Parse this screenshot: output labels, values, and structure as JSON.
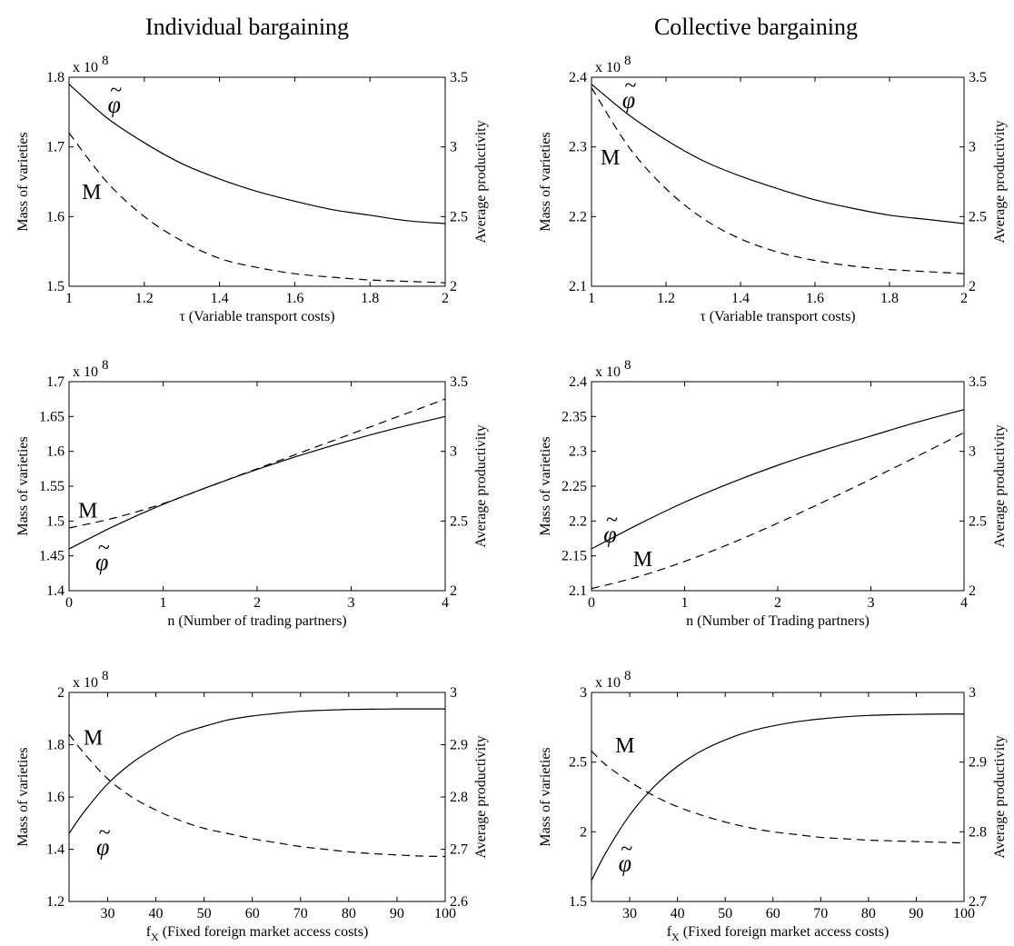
{
  "column_titles": [
    "Individual bargaining",
    "Collective bargaining"
  ],
  "y_multiplier_text": "x 10",
  "y_multiplier_exponent": "8",
  "curve_labels": {
    "M": "M",
    "phi": "φ",
    "tilde": "~"
  },
  "colors": {
    "axis": "#000000",
    "solid": "#000000",
    "dashed": "#000000"
  },
  "chart_data": [
    {
      "type": "line",
      "position": "top-left",
      "xlabel": "τ (Variable transport costs)",
      "ylabel_left": "Mass of varieties",
      "ylabel_right": "Average productivity",
      "xlim": [
        1,
        2
      ],
      "ylim_left": [
        1.5,
        1.8
      ],
      "ylim_right": [
        2,
        3.5
      ],
      "xticks": [
        1,
        1.2,
        1.4,
        1.6,
        1.8,
        2
      ],
      "xtick_labels": [
        "1",
        "1.2",
        "1.4",
        "1.6",
        "1.8",
        "2"
      ],
      "yticks_left": [
        1.5,
        1.6,
        1.7,
        1.8
      ],
      "ytick_labels_left": [
        "1.5",
        "1.6",
        "1.7",
        "1.8"
      ],
      "yticks_right": [
        2,
        2.5,
        3,
        3.5
      ],
      "ytick_labels_right": [
        "2",
        "2.5",
        "3",
        "3.5"
      ],
      "series": [
        {
          "name": "φ",
          "axis": "right",
          "style": "solid",
          "x": [
            1,
            1.1,
            1.2,
            1.3,
            1.4,
            1.5,
            1.6,
            1.7,
            1.8,
            1.9,
            2
          ],
          "y": [
            3.45,
            3.21,
            3.03,
            2.88,
            2.77,
            2.68,
            2.61,
            2.55,
            2.51,
            2.47,
            2.45
          ]
        },
        {
          "name": "M",
          "axis": "left",
          "style": "dashed",
          "x": [
            1,
            1.1,
            1.2,
            1.3,
            1.4,
            1.5,
            1.6,
            1.7,
            1.8,
            1.9,
            2
          ],
          "y": [
            1.72,
            1.65,
            1.6,
            1.565,
            1.54,
            1.527,
            1.518,
            1.513,
            1.509,
            1.507,
            1.505
          ]
        }
      ],
      "labels": [
        {
          "key": "phi",
          "x": 1.12,
          "axis": "right",
          "y": 3.25
        },
        {
          "key": "M",
          "x": 1.06,
          "axis": "left",
          "y": 1.625
        }
      ]
    },
    {
      "type": "line",
      "position": "top-right",
      "xlabel": "τ (Variable transport costs)",
      "ylabel_left": "Mass of varieties",
      "ylabel_right": "Average productivity",
      "xlim": [
        1,
        2
      ],
      "ylim_left": [
        2.1,
        2.4
      ],
      "ylim_right": [
        2,
        3.5
      ],
      "xticks": [
        1,
        1.2,
        1.4,
        1.6,
        1.8,
        2
      ],
      "xtick_labels": [
        "1",
        "1.2",
        "1.4",
        "1.6",
        "1.8",
        "2"
      ],
      "yticks_left": [
        2.1,
        2.2,
        2.3,
        2.4
      ],
      "ytick_labels_left": [
        "2.1",
        "2.2",
        "2.3",
        "2.4"
      ],
      "yticks_right": [
        2,
        2.5,
        3,
        3.5
      ],
      "ytick_labels_right": [
        "2",
        "2.5",
        "3",
        "3.5"
      ],
      "series": [
        {
          "name": "φ",
          "axis": "right",
          "style": "solid",
          "x": [
            1,
            1.1,
            1.2,
            1.3,
            1.4,
            1.5,
            1.6,
            1.7,
            1.8,
            1.9,
            2
          ],
          "y": [
            3.45,
            3.23,
            3.05,
            2.9,
            2.79,
            2.7,
            2.62,
            2.56,
            2.51,
            2.48,
            2.45
          ]
        },
        {
          "name": "M",
          "axis": "left",
          "style": "dashed",
          "x": [
            1,
            1.1,
            1.2,
            1.3,
            1.4,
            1.5,
            1.6,
            1.7,
            1.8,
            1.9,
            2
          ],
          "y": [
            2.385,
            2.3,
            2.24,
            2.197,
            2.168,
            2.149,
            2.137,
            2.129,
            2.124,
            2.121,
            2.118
          ]
        }
      ],
      "labels": [
        {
          "key": "phi",
          "x": 1.1,
          "axis": "right",
          "y": 3.28
        },
        {
          "key": "M",
          "x": 1.05,
          "axis": "left",
          "y": 2.275
        }
      ]
    },
    {
      "type": "line",
      "position": "middle-left",
      "xlabel": "n (Number of trading partners)",
      "ylabel_left": "Mass of varieties",
      "ylabel_right": "Average productivity",
      "xlim": [
        0,
        4
      ],
      "ylim_left": [
        1.4,
        1.7
      ],
      "ylim_right": [
        2,
        3.5
      ],
      "xticks": [
        0,
        1,
        2,
        3,
        4
      ],
      "xtick_labels": [
        "0",
        "1",
        "2",
        "3",
        "4"
      ],
      "yticks_left": [
        1.4,
        1.45,
        1.5,
        1.55,
        1.6,
        1.65,
        1.7
      ],
      "ytick_labels_left": [
        "1.4",
        "1.45",
        "1.5",
        "1.55",
        "1.6",
        "1.65",
        "1.7"
      ],
      "yticks_right": [
        2,
        2.5,
        3,
        3.5
      ],
      "ytick_labels_right": [
        "2",
        "2.5",
        "3",
        "3.5"
      ],
      "series": [
        {
          "name": "φ",
          "axis": "right",
          "style": "solid",
          "x": [
            0,
            0.5,
            1,
            1.5,
            2,
            2.5,
            3,
            3.5,
            4
          ],
          "y": [
            2.3,
            2.47,
            2.62,
            2.75,
            2.87,
            2.98,
            3.08,
            3.17,
            3.25
          ]
        },
        {
          "name": "M",
          "axis": "left",
          "style": "dashed",
          "x": [
            0,
            0.5,
            1,
            1.5,
            2,
            2.5,
            3,
            3.5,
            4
          ],
          "y": [
            1.49,
            1.505,
            1.525,
            1.55,
            1.575,
            1.6,
            1.625,
            1.65,
            1.675
          ]
        }
      ],
      "labels": [
        {
          "key": "M",
          "x": 0.2,
          "axis": "left",
          "y": 1.505
        },
        {
          "key": "phi",
          "x": 0.35,
          "axis": "right",
          "y": 2.15
        }
      ]
    },
    {
      "type": "line",
      "position": "middle-right",
      "xlabel": "n (Number of Trading partners)",
      "ylabel_left": "Mass of varieties",
      "ylabel_right": "Average productivity",
      "xlim": [
        0,
        4
      ],
      "ylim_left": [
        2.1,
        2.4
      ],
      "ylim_right": [
        2,
        3.5
      ],
      "xticks": [
        0,
        1,
        2,
        3,
        4
      ],
      "xtick_labels": [
        "0",
        "1",
        "2",
        "3",
        "4"
      ],
      "yticks_left": [
        2.1,
        2.15,
        2.2,
        2.25,
        2.3,
        2.35,
        2.4
      ],
      "ytick_labels_left": [
        "2.1",
        "2.15",
        "2.2",
        "2.25",
        "2.3",
        "2.35",
        "2.4"
      ],
      "yticks_right": [
        2,
        2.5,
        3,
        3.5
      ],
      "ytick_labels_right": [
        "2",
        "2.5",
        "3",
        "3.5"
      ],
      "series": [
        {
          "name": "φ",
          "axis": "left",
          "style": "solid",
          "x": [
            0,
            0.5,
            1,
            1.5,
            2,
            2.5,
            3,
            3.5,
            4
          ],
          "y": [
            2.16,
            2.195,
            2.227,
            2.255,
            2.28,
            2.302,
            2.322,
            2.342,
            2.36
          ]
        },
        {
          "name": "M",
          "axis": "left",
          "style": "dashed",
          "x": [
            0,
            0.5,
            1,
            1.5,
            2,
            2.5,
            3,
            3.5,
            4
          ],
          "y": [
            2.103,
            2.12,
            2.142,
            2.168,
            2.197,
            2.228,
            2.26,
            2.293,
            2.327
          ]
        }
      ],
      "labels": [
        {
          "key": "phi",
          "x": 0.2,
          "axis": "left",
          "y": 2.17
        },
        {
          "key": "M",
          "x": 0.55,
          "axis": "left",
          "y": 2.135
        }
      ]
    },
    {
      "type": "line",
      "position": "bottom-left",
      "xlabel": "f_X (Fixed foreign market access costs)",
      "ylabel_left": "Mass of varieties",
      "ylabel_right": "Average productivity",
      "xlim": [
        22,
        100
      ],
      "ylim_left": [
        1.2,
        2
      ],
      "ylim_right": [
        2.6,
        3
      ],
      "xticks": [
        30,
        40,
        50,
        60,
        70,
        80,
        90,
        100
      ],
      "xtick_labels": [
        "30",
        "40",
        "50",
        "60",
        "70",
        "80",
        "90",
        "100"
      ],
      "yticks_left": [
        1.2,
        1.4,
        1.6,
        1.8,
        2
      ],
      "ytick_labels_left": [
        "1.2",
        "1.4",
        "1.6",
        "1.8",
        "2"
      ],
      "yticks_right": [
        2.6,
        2.7,
        2.8,
        2.9,
        3
      ],
      "ytick_labels_right": [
        "2.6",
        "2.7",
        "2.8",
        "2.9",
        "3"
      ],
      "series": [
        {
          "name": "φ",
          "axis": "left",
          "style": "solid",
          "x": [
            22,
            25,
            30,
            35,
            40,
            45,
            50,
            55,
            60,
            65,
            70,
            75,
            80,
            85,
            90,
            95,
            100
          ],
          "y": [
            1.46,
            1.54,
            1.65,
            1.73,
            1.79,
            1.84,
            1.87,
            1.895,
            1.91,
            1.92,
            1.928,
            1.932,
            1.935,
            1.936,
            1.937,
            1.937,
            1.937
          ]
        },
        {
          "name": "M",
          "axis": "left",
          "style": "dashed",
          "x": [
            22,
            25,
            30,
            35,
            40,
            45,
            50,
            55,
            60,
            65,
            70,
            75,
            80,
            85,
            90,
            95,
            100
          ],
          "y": [
            1.84,
            1.77,
            1.67,
            1.6,
            1.55,
            1.51,
            1.48,
            1.46,
            1.44,
            1.425,
            1.41,
            1.4,
            1.39,
            1.383,
            1.378,
            1.374,
            1.372
          ]
        }
      ],
      "labels": [
        {
          "key": "M",
          "x": 27,
          "axis": "left",
          "y": 1.8
        },
        {
          "key": "phi",
          "x": 29,
          "axis": "left",
          "y": 1.38
        }
      ]
    },
    {
      "type": "line",
      "position": "bottom-right",
      "xlabel": "f_X (Fixed foreign market access costs)",
      "ylabel_left": "Mass of varieties",
      "ylabel_right": "Average productivity",
      "xlim": [
        22,
        100
      ],
      "ylim_left": [
        1.5,
        3
      ],
      "ylim_right": [
        2.7,
        3
      ],
      "xticks": [
        30,
        40,
        50,
        60,
        70,
        80,
        90,
        100
      ],
      "xtick_labels": [
        "30",
        "40",
        "50",
        "60",
        "70",
        "80",
        "90",
        "100"
      ],
      "yticks_left": [
        1.5,
        2,
        2.5,
        3
      ],
      "ytick_labels_left": [
        "1.5",
        "2",
        "2.5",
        "3"
      ],
      "yticks_right": [
        2.7,
        2.8,
        2.9,
        3
      ],
      "ytick_labels_right": [
        "2.7",
        "2.8",
        "2.9",
        "3"
      ],
      "series": [
        {
          "name": "φ",
          "axis": "left",
          "style": "solid",
          "x": [
            22,
            25,
            30,
            35,
            40,
            45,
            50,
            55,
            60,
            65,
            70,
            75,
            80,
            85,
            90,
            95,
            100
          ],
          "y": [
            1.65,
            1.85,
            2.12,
            2.32,
            2.47,
            2.58,
            2.66,
            2.72,
            2.76,
            2.79,
            2.81,
            2.825,
            2.835,
            2.84,
            2.843,
            2.845,
            2.845
          ]
        },
        {
          "name": "M",
          "axis": "left",
          "style": "dashed",
          "x": [
            22,
            25,
            30,
            35,
            40,
            45,
            50,
            55,
            60,
            65,
            70,
            75,
            80,
            85,
            90,
            95,
            100
          ],
          "y": [
            2.58,
            2.48,
            2.36,
            2.26,
            2.18,
            2.12,
            2.07,
            2.03,
            2.0,
            1.98,
            1.96,
            1.95,
            1.94,
            1.935,
            1.93,
            1.925,
            1.92
          ]
        }
      ],
      "labels": [
        {
          "key": "M",
          "x": 29,
          "axis": "left",
          "y": 2.57
        },
        {
          "key": "phi",
          "x": 29,
          "axis": "left",
          "y": 1.72
        }
      ]
    }
  ]
}
